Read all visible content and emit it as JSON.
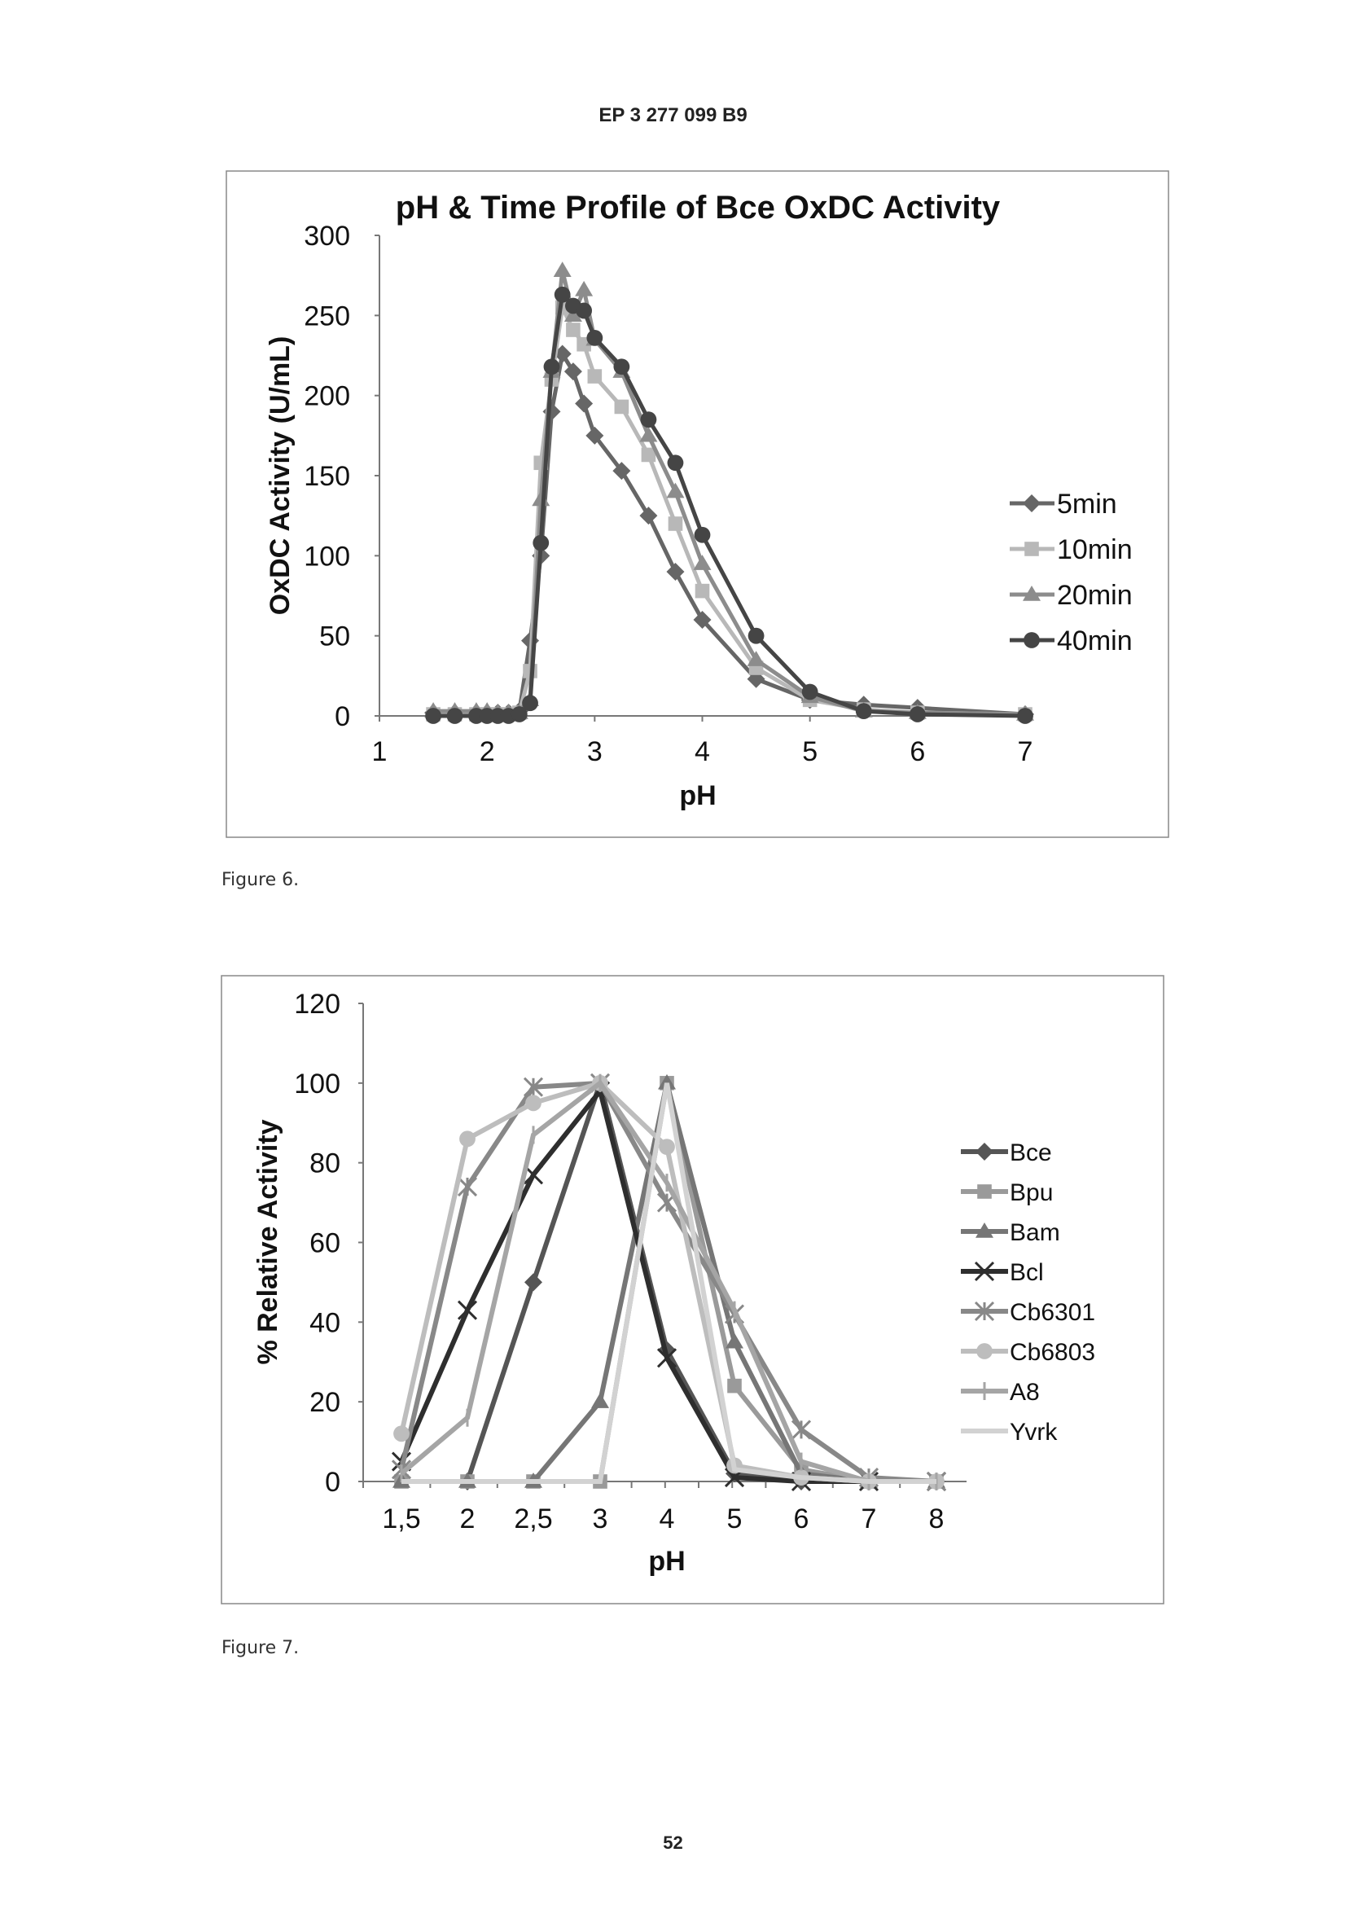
{
  "header": "EP 3 277 099 B9",
  "page_number": "52",
  "figure6_caption": "Figure 6.",
  "figure7_caption": "Figure 7.",
  "chart_data": [
    {
      "type": "line",
      "title": "pH & Time Profile of Bce OxDC Activity",
      "xlabel": "pH",
      "ylabel": "OxDC Activity (U/mL)",
      "xlim": [
        1,
        7
      ],
      "ylim": [
        0,
        300
      ],
      "xticks": [
        "1",
        "2",
        "3",
        "4",
        "5",
        "6",
        "7"
      ],
      "yticks": [
        "0",
        "50",
        "100",
        "150",
        "200",
        "250",
        "300"
      ],
      "grid": false,
      "legend": "right",
      "x": [
        1.5,
        1.7,
        1.9,
        2.0,
        2.1,
        2.2,
        2.3,
        2.4,
        2.5,
        2.6,
        2.7,
        2.8,
        2.9,
        3.0,
        3.25,
        3.5,
        3.75,
        4.0,
        4.5,
        5.0,
        5.5,
        6.0,
        7.0
      ],
      "series": [
        {
          "name": "5min",
          "marker": "diamond",
          "color": "#666666",
          "values": [
            2,
            2,
            2,
            2,
            2,
            2,
            3,
            47,
            100,
            190,
            226,
            215,
            195,
            175,
            153,
            125,
            90,
            60,
            23,
            10,
            7,
            5,
            1
          ]
        },
        {
          "name": "10min",
          "marker": "square",
          "color": "#b8b8b8",
          "values": [
            1,
            1,
            1,
            1,
            1,
            1,
            2,
            28,
            158,
            210,
            255,
            241,
            232,
            212,
            193,
            163,
            120,
            78,
            30,
            10,
            4,
            2,
            1
          ]
        },
        {
          "name": "20min",
          "marker": "triangle",
          "color": "#8c8c8c",
          "values": [
            3,
            3,
            3,
            3,
            2,
            2,
            2,
            10,
            135,
            215,
            278,
            250,
            266,
            235,
            215,
            175,
            140,
            95,
            35,
            12,
            3,
            2,
            1
          ]
        },
        {
          "name": "40min",
          "marker": "circle",
          "color": "#454545",
          "values": [
            0,
            0,
            0,
            0,
            0,
            0,
            1,
            8,
            108,
            218,
            263,
            256,
            253,
            236,
            218,
            185,
            158,
            113,
            50,
            15,
            3,
            1,
            0
          ]
        }
      ]
    },
    {
      "type": "line",
      "xlabel": "pH",
      "ylabel": "% Relative Activity",
      "ylim": [
        0,
        120
      ],
      "yticks": [
        "0",
        "20",
        "40",
        "60",
        "80",
        "100",
        "120"
      ],
      "categories": [
        "1,5",
        "2",
        "2,5",
        "3",
        "4",
        "5",
        "6",
        "7",
        "8"
      ],
      "grid": false,
      "legend": "right",
      "series": [
        {
          "name": "Bce",
          "marker": "diamond",
          "color": "#555555",
          "values": [
            null,
            0,
            50,
            100,
            33,
            2,
            0,
            0,
            0
          ]
        },
        {
          "name": "Bpu",
          "marker": "square",
          "color": "#9a9a9a",
          "values": [
            0,
            0,
            0,
            0,
            100,
            24,
            3,
            0,
            0
          ]
        },
        {
          "name": "Bam",
          "marker": "triangle",
          "color": "#767676",
          "values": [
            0,
            0,
            0,
            20,
            100,
            35,
            2,
            0,
            0
          ]
        },
        {
          "name": "Bcl",
          "marker": "x",
          "color": "#2e2e2e",
          "values": [
            5,
            43,
            77,
            98,
            31,
            1,
            0,
            0,
            0
          ]
        },
        {
          "name": "Cb6301",
          "marker": "star",
          "color": "#888888",
          "values": [
            3,
            74,
            99,
            100,
            70,
            42,
            13,
            1,
            0
          ]
        },
        {
          "name": "Cb6803",
          "marker": "circle",
          "color": "#bdbdbd",
          "values": [
            12,
            86,
            95,
            100,
            84,
            4,
            1,
            0,
            0
          ]
        },
        {
          "name": "A8",
          "marker": "plus",
          "color": "#a5a5a5",
          "values": [
            2,
            16,
            87,
            100,
            75,
            43,
            5,
            0,
            0
          ]
        },
        {
          "name": "Yvrk",
          "marker": "dash",
          "color": "#d2d2d2",
          "values": [
            0,
            0,
            0,
            0,
            100,
            3,
            1,
            0,
            0
          ]
        }
      ]
    }
  ]
}
